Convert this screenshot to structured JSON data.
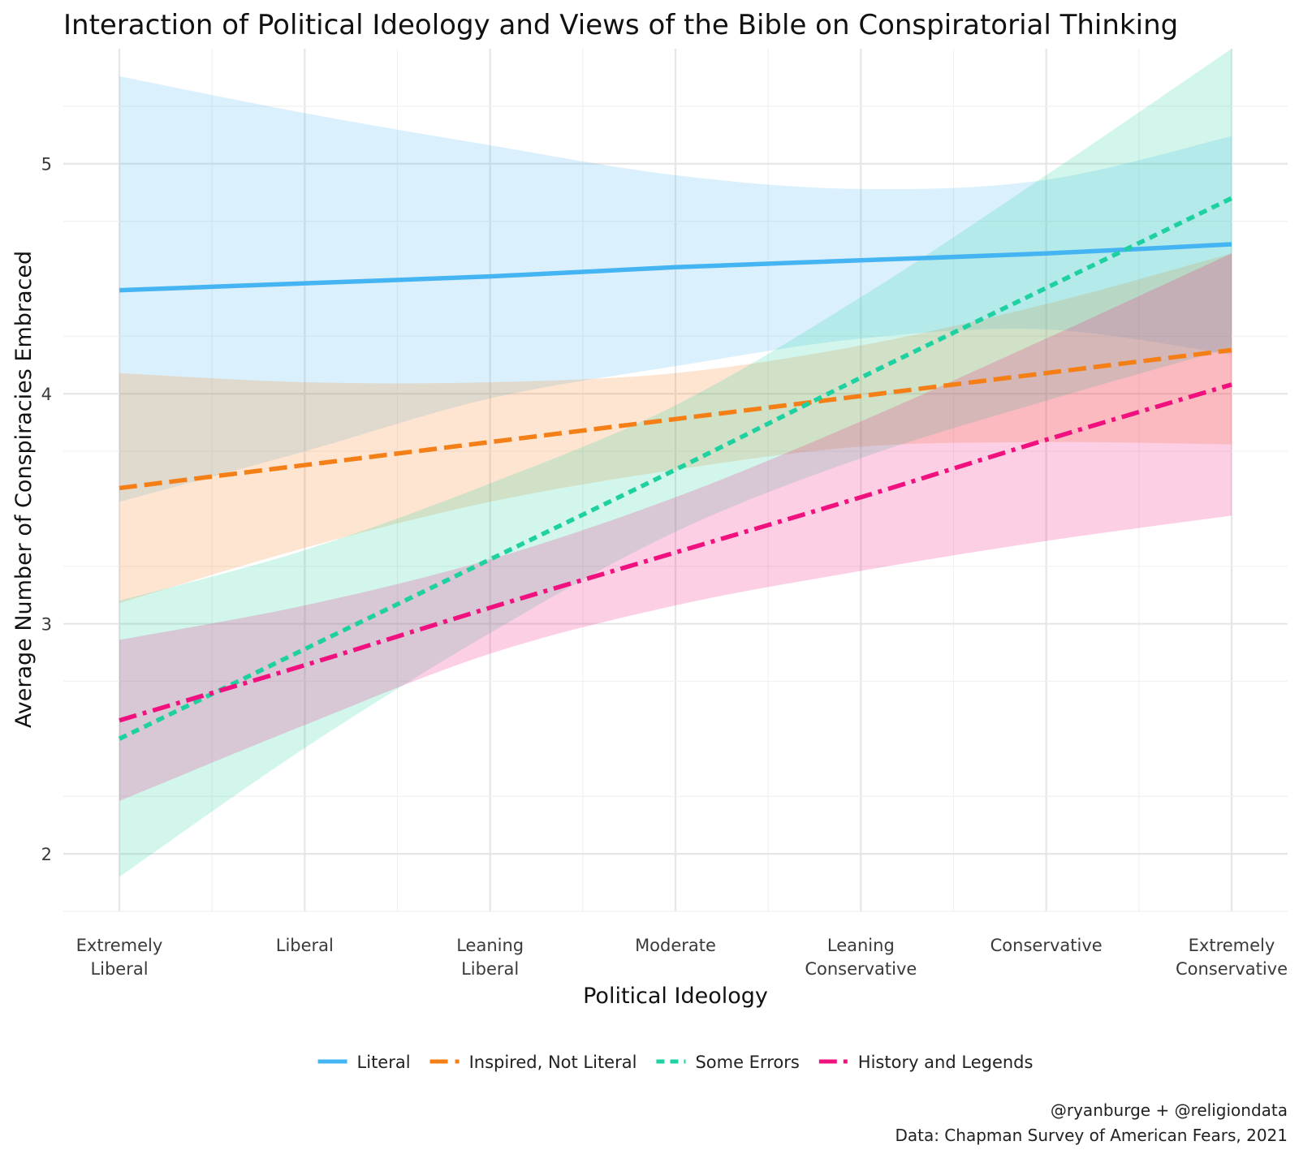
{
  "chart_data": {
    "type": "line",
    "title": "Interaction of Political Ideology and Views of the Bible on Conspiratorial Thinking",
    "xlabel": "Political Ideology",
    "ylabel": "Average Number of Conspiracies Embraced",
    "categories": [
      "Extremely\nLiberal",
      "Liberal",
      "Leaning\nLiberal",
      "Moderate",
      "Leaning\nConservative",
      "Conservative",
      "Extremely\nConservative"
    ],
    "yticks": [
      2,
      3,
      4,
      5
    ],
    "ylim": [
      1.75,
      5.5
    ],
    "grid": true,
    "legend_position": "bottom",
    "series": [
      {
        "name": "Literal",
        "color": "#45b4f2",
        "dash": "solid",
        "values": [
          4.45,
          4.48,
          4.51,
          4.55,
          4.58,
          4.61,
          4.65
        ],
        "lower": [
          3.53,
          3.75,
          3.98,
          4.12,
          4.24,
          4.28,
          4.17
        ],
        "upper": [
          5.38,
          5.22,
          5.08,
          4.95,
          4.89,
          4.93,
          5.12
        ]
      },
      {
        "name": "Inspired, Not Literal",
        "color": "#f57f17",
        "dash": "long",
        "values": [
          3.59,
          3.69,
          3.79,
          3.89,
          3.99,
          4.09,
          4.19
        ],
        "lower": [
          3.09,
          3.33,
          3.53,
          3.67,
          3.77,
          3.79,
          3.78
        ],
        "upper": [
          4.09,
          4.05,
          4.05,
          4.09,
          4.21,
          4.39,
          4.61
        ]
      },
      {
        "name": "Some Errors",
        "color": "#1fd1a0",
        "dash": "short",
        "values": [
          2.5,
          2.89,
          3.28,
          3.67,
          4.07,
          4.46,
          4.85
        ],
        "lower": [
          1.9,
          2.46,
          2.96,
          3.4,
          3.72,
          3.97,
          4.2
        ],
        "upper": [
          3.1,
          3.32,
          3.61,
          3.95,
          4.42,
          4.95,
          5.5
        ]
      },
      {
        "name": "History and Legends",
        "color": "#f0117f",
        "dash": "dashdot",
        "values": [
          2.58,
          2.82,
          3.07,
          3.31,
          3.55,
          3.8,
          4.04
        ],
        "lower": [
          2.23,
          2.56,
          2.87,
          3.08,
          3.23,
          3.36,
          3.47
        ],
        "upper": [
          2.93,
          3.08,
          3.28,
          3.55,
          3.88,
          4.24,
          4.61
        ]
      }
    ]
  },
  "caption": {
    "line1": "@ryanburge + @religiondata",
    "line2": "Data: Chapman Survey of American Fears, 2021"
  }
}
